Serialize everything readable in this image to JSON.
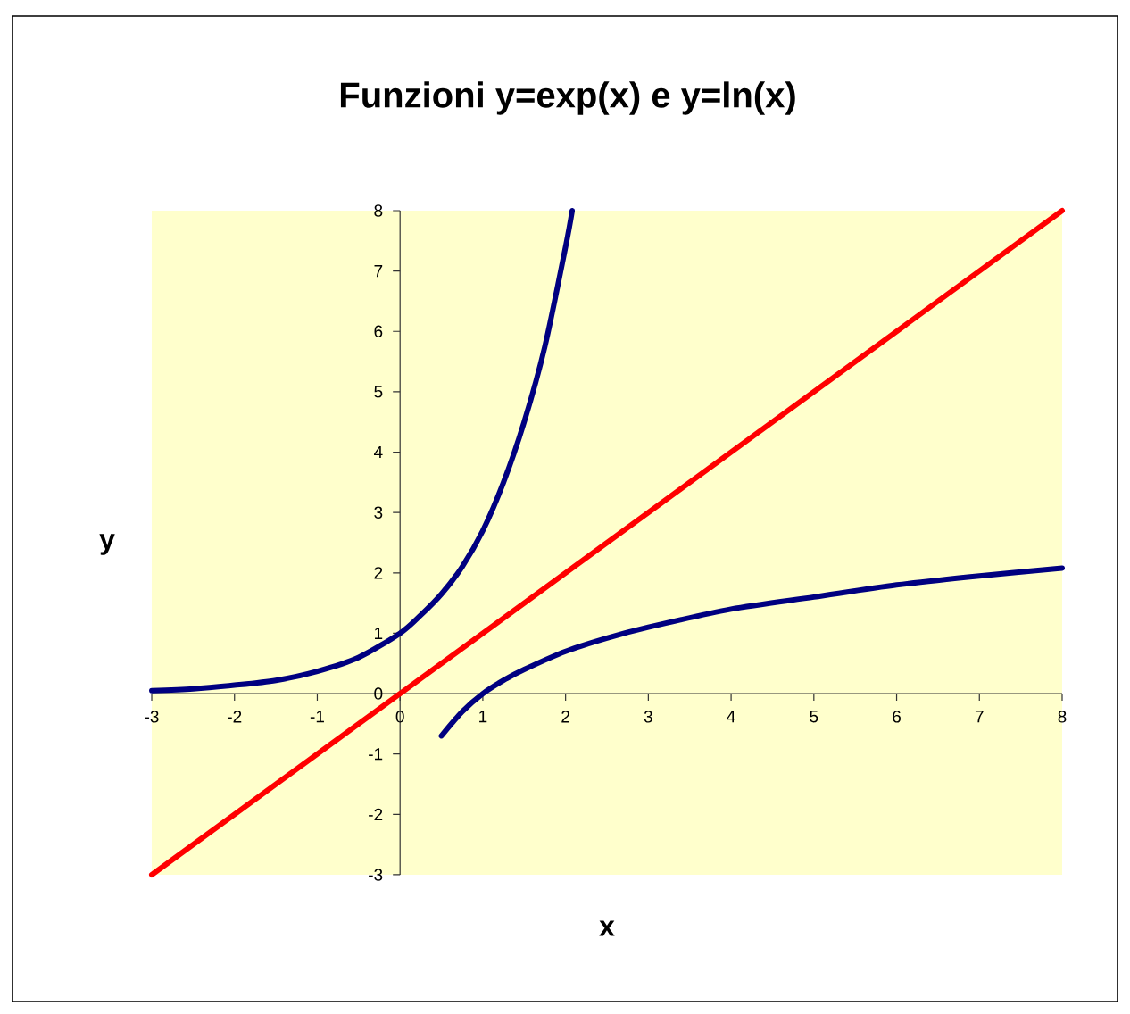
{
  "chart_data": {
    "type": "line",
    "title": "Funzioni y=exp(x) e y=ln(x)",
    "xlabel": "x",
    "ylabel": "y",
    "series": [
      {
        "color": "#000080",
        "x": [
          -3,
          -2.5,
          -2,
          -1.5,
          -1,
          -0.5,
          0,
          0.25,
          0.5,
          0.75,
          1,
          1.25,
          1.5,
          1.75,
          2,
          2.08
        ],
        "values": [
          0.05,
          0.08,
          0.14,
          0.22,
          0.37,
          0.6,
          1,
          1.3,
          1.65,
          2.1,
          2.7,
          3.5,
          4.5,
          5.75,
          7.4,
          8
        ]
      },
      {
        "color": "#000080",
        "x": [
          0.5,
          0.75,
          1,
          1.25,
          1.5,
          2,
          2.5,
          3,
          4,
          5,
          6,
          7,
          8
        ],
        "values": [
          -0.7,
          -0.3,
          0,
          0.22,
          0.4,
          0.7,
          0.92,
          1.1,
          1.4,
          1.6,
          1.8,
          1.95,
          2.08
        ]
      },
      {
        "color": "#ff0000",
        "x": [
          -3,
          8
        ],
        "values": [
          -3,
          8
        ]
      }
    ],
    "xlim": [
      -3,
      8
    ],
    "ylim": [
      -3,
      8
    ],
    "xticks": [
      -3,
      -2,
      -1,
      0,
      1,
      2,
      3,
      4,
      5,
      6,
      7,
      8
    ],
    "yticks": [
      -3,
      -2,
      -1,
      0,
      1,
      2,
      3,
      4,
      5,
      6,
      7,
      8
    ],
    "grid": false,
    "legend": false,
    "marker": "none",
    "line_style": "solid"
  }
}
